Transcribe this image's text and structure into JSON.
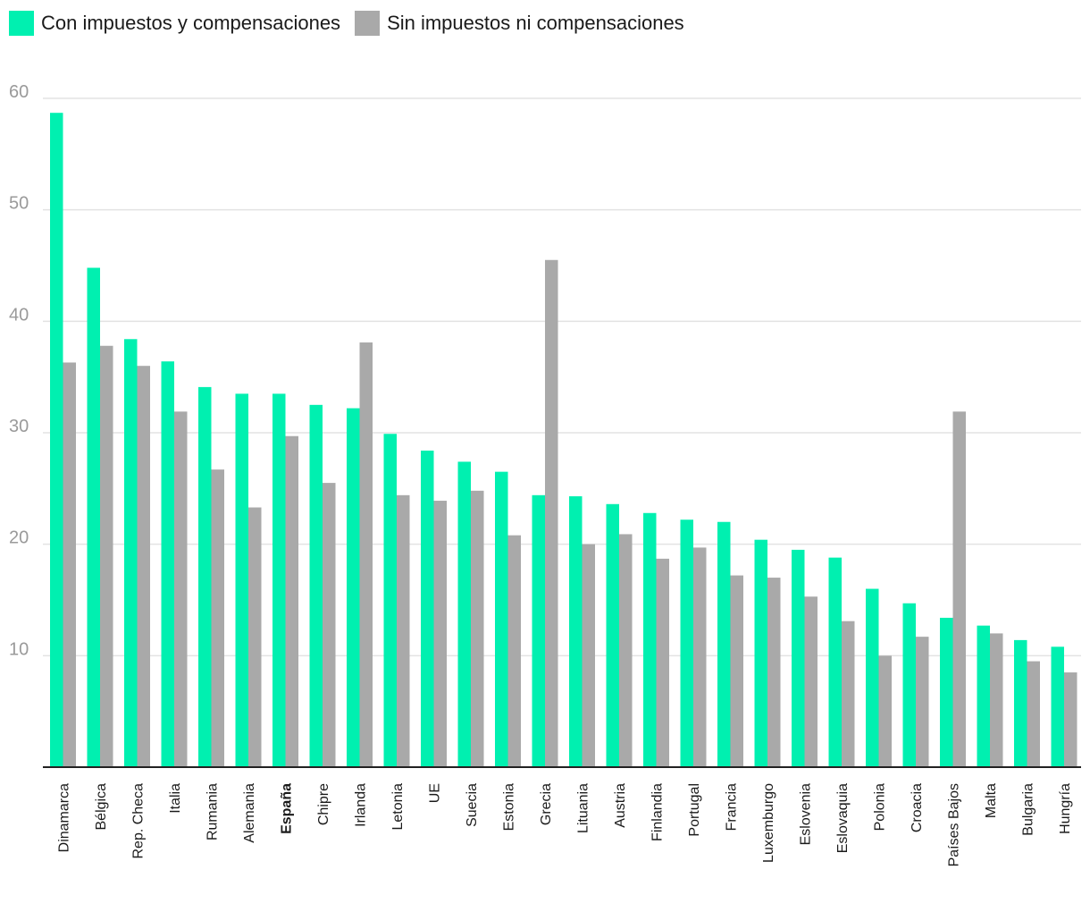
{
  "chart_data": {
    "type": "bar",
    "title": "",
    "xlabel": "",
    "ylabel": "",
    "ylim": [
      0,
      60
    ],
    "yticks": [
      10,
      20,
      30,
      40,
      50,
      60
    ],
    "grid": true,
    "legend_position": "top-left",
    "highlight_category": "España",
    "categories": [
      "Dinamarca",
      "Bélgica",
      "Rep. Checa",
      "Italia",
      "Rumania",
      "Alemania",
      "España",
      "Chipre",
      "Irlanda",
      "Letonia",
      "UE",
      "Suecia",
      "Estonia",
      "Grecia",
      "Lituania",
      "Austria",
      "Finlandia",
      "Portugal",
      "Francia",
      "Luxemburgo",
      "Eslovenia",
      "Eslovaquia",
      "Polonia",
      "Croacia",
      "Países Bajos",
      "Malta",
      "Bulgaria",
      "Hungría"
    ],
    "series": [
      {
        "name": "Con impuestos y compensaciones",
        "color": "#00f0b0",
        "values": [
          58.7,
          44.8,
          38.4,
          36.4,
          34.1,
          33.5,
          33.5,
          32.5,
          32.2,
          29.9,
          28.4,
          27.4,
          26.5,
          24.4,
          24.3,
          23.6,
          22.8,
          22.2,
          22.0,
          20.4,
          19.5,
          18.8,
          16.0,
          14.7,
          13.4,
          12.7,
          11.4,
          10.8
        ]
      },
      {
        "name": "Sin impuestos ni compensaciones",
        "color": "#a9a9a9",
        "values": [
          36.3,
          37.8,
          36.0,
          31.9,
          26.7,
          23.3,
          29.7,
          25.5,
          38.1,
          24.4,
          23.9,
          24.8,
          20.8,
          45.5,
          20.0,
          20.9,
          18.7,
          19.7,
          17.2,
          17.0,
          15.3,
          13.1,
          10.0,
          11.7,
          31.9,
          12.0,
          9.5,
          8.5
        ]
      }
    ]
  }
}
